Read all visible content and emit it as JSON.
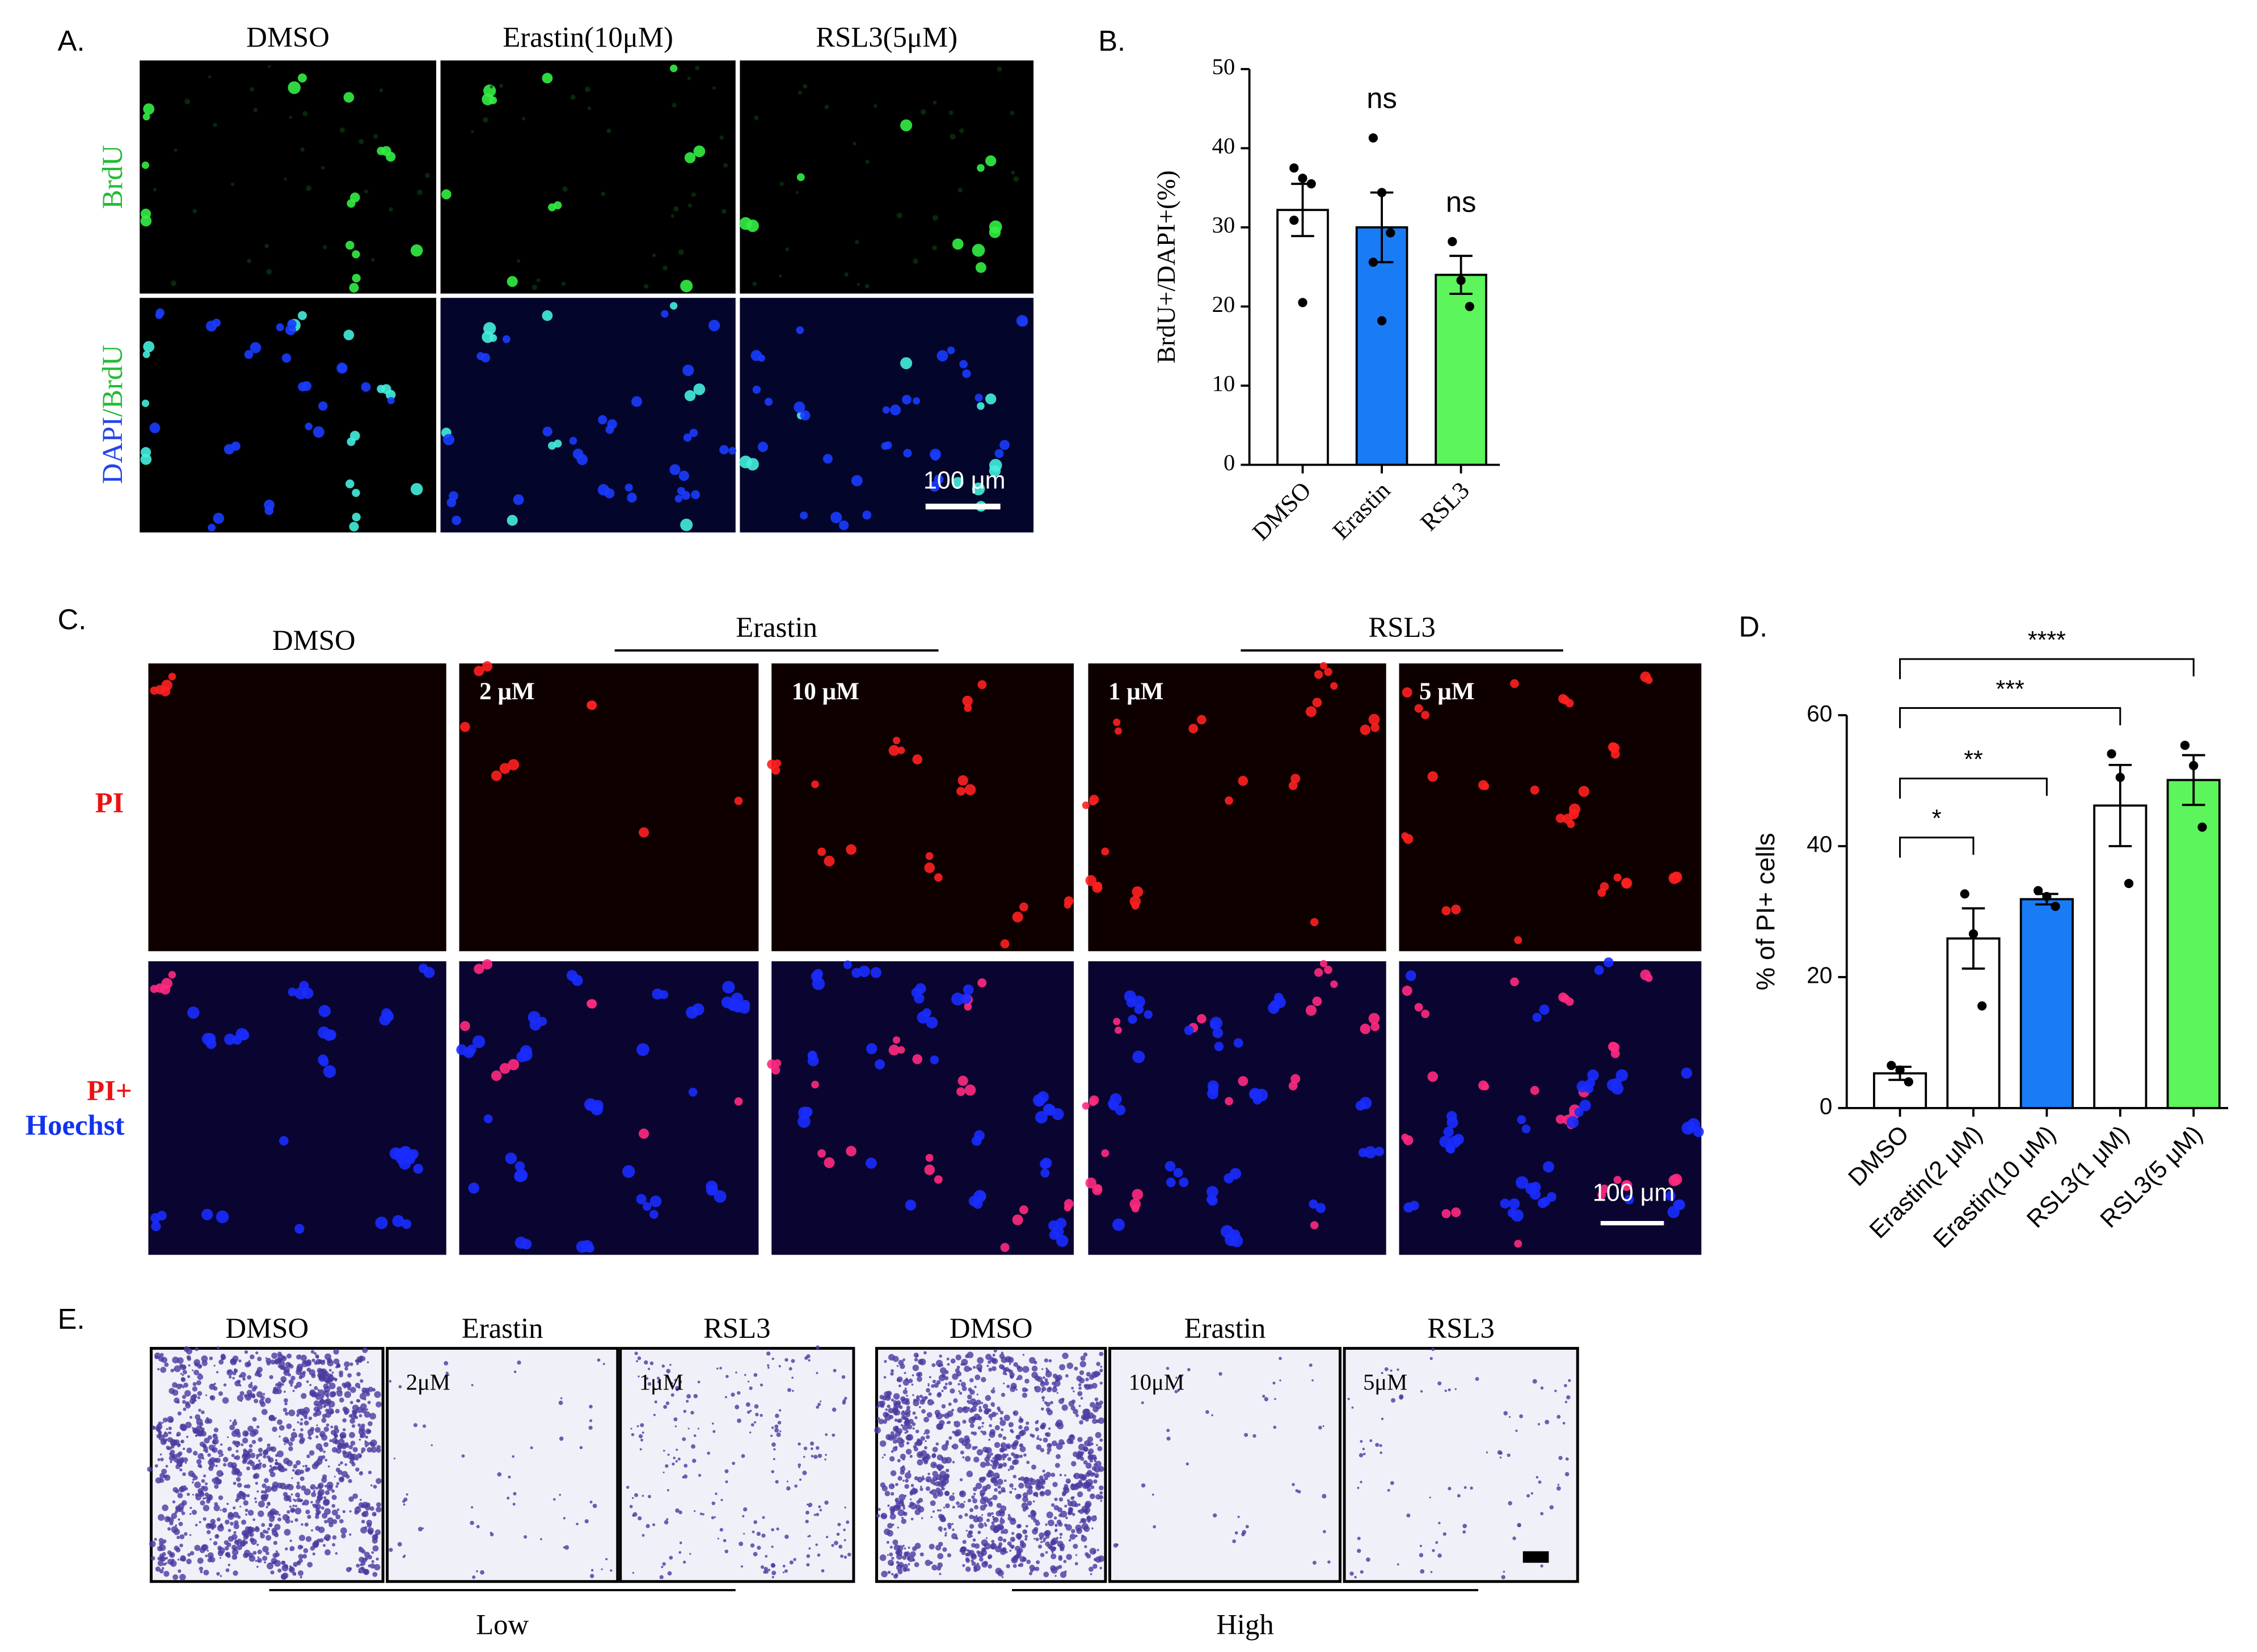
{
  "panel_a": {
    "label": "A.",
    "columns": [
      "DMSO",
      "Erastin(10μM)",
      "RSL3(5μM)"
    ],
    "rows": [
      {
        "parts": [
          "BrdU"
        ]
      },
      {
        "parts": [
          "DAPI",
          "/BrdU"
        ]
      }
    ],
    "scale_bar": "100 μm"
  },
  "panel_c": {
    "label": "C.",
    "control": "DMSO",
    "groups": [
      "Erastin",
      "RSL3"
    ],
    "doses": [
      "2 μM",
      "10 μM",
      "1 μM",
      "5 μM"
    ],
    "rows": [
      {
        "parts": [
          "PI"
        ]
      },
      {
        "parts": [
          "PI+",
          "Hoechst"
        ]
      }
    ],
    "scale_bar": "100 μm"
  },
  "panel_e": {
    "label": "E.",
    "sets": [
      {
        "columns": [
          "DMSO",
          "Erastin",
          "RSL3"
        ],
        "doses": [
          "2μM",
          "1μM"
        ],
        "level": "Low"
      },
      {
        "columns": [
          "DMSO",
          "Erastin",
          "RSL3"
        ],
        "doses": [
          "10μM",
          "5μM"
        ],
        "level": "High"
      }
    ]
  },
  "chart_data": [
    {
      "type": "bar",
      "panel_label": "B.",
      "ylabel": "BrdU+/DAPI+(%)",
      "categories": [
        "DMSO",
        "Erastin",
        "RSL3"
      ],
      "values": [
        32.2,
        30.0,
        24.0
      ],
      "errors": [
        3.3,
        4.4,
        2.4
      ],
      "points": [
        [
          37.5,
          36.2,
          35.5,
          30.9,
          20.5
        ],
        [
          41.3,
          34.4,
          29.3,
          25.6,
          18.2
        ],
        [
          28.2,
          23.3,
          20.0
        ]
      ],
      "colors": [
        "#ffffff",
        "#1a7cf5",
        "#5cf55c"
      ],
      "significance": [
        null,
        "ns",
        "ns"
      ],
      "ylim": [
        0,
        50
      ],
      "yticks": [
        0,
        10,
        20,
        30,
        40,
        50
      ]
    },
    {
      "type": "bar",
      "panel_label": "D.",
      "ylabel": "% of PI+ cells",
      "categories": [
        "DMSO",
        "Erastin(2 μM)",
        "Erastin(10 μM)",
        "RSL3(1 μM)",
        "RSL3(5 μM)"
      ],
      "values": [
        5.3,
        25.9,
        31.9,
        46.2,
        50.1
      ],
      "errors": [
        1.0,
        4.6,
        0.8,
        6.2,
        3.8
      ],
      "points": [
        [
          6.5,
          5.8,
          4.0
        ],
        [
          32.7,
          26.6,
          15.6
        ],
        [
          33.2,
          32.3,
          30.8
        ],
        [
          54.1,
          50.5,
          34.3
        ],
        [
          55.4,
          52.3,
          42.9
        ]
      ],
      "colors": [
        "#ffffff",
        "#ffffff",
        "#1a7cf5",
        "#ffffff",
        "#5cf55c"
      ],
      "significance": [
        null,
        "*",
        "**",
        "***",
        "****"
      ],
      "ylim": [
        0,
        60
      ],
      "yticks": [
        0,
        20,
        40,
        60
      ]
    }
  ]
}
